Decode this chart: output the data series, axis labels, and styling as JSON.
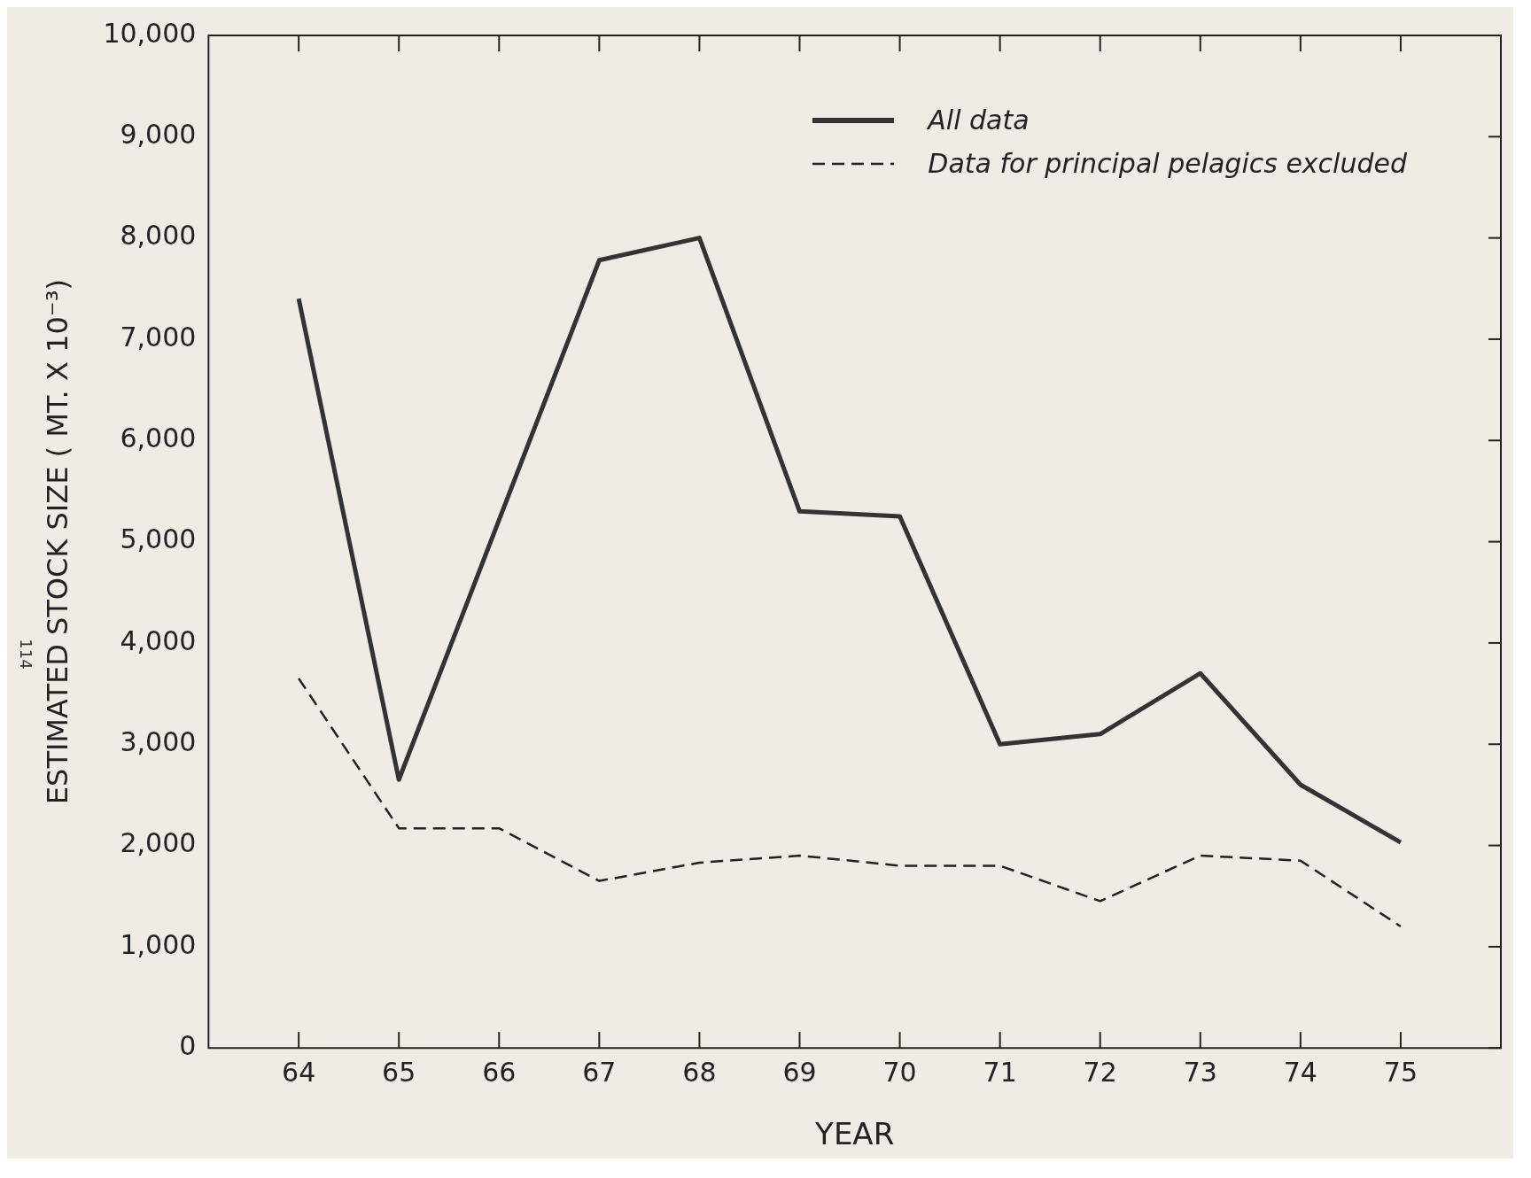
{
  "chart_data": {
    "type": "line",
    "xlabel": "YEAR",
    "ylabel": "ESTIMATED STOCK SIZE ( MT. X 10⁻³)",
    "x": [
      64,
      65,
      66,
      67,
      68,
      69,
      70,
      71,
      72,
      73,
      74,
      75
    ],
    "series": [
      {
        "name": "All data",
        "color": "#333333",
        "line_style": "solid",
        "values": [
          7400,
          2650,
          null,
          7780,
          8000,
          5300,
          5250,
          3000,
          3100,
          3700,
          2600,
          2030
        ]
      },
      {
        "name": "Data for principal pelagics excluded",
        "color": "#222222",
        "line_style": "dashed",
        "values": [
          3650,
          2170,
          2170,
          1650,
          1830,
          1900,
          1800,
          1800,
          1450,
          1900,
          1850,
          1200
        ]
      }
    ],
    "xlim": [
      63.1,
      76
    ],
    "xticks": [
      64,
      65,
      66,
      67,
      68,
      69,
      70,
      71,
      72,
      73,
      74,
      75
    ],
    "ylim": [
      0,
      10000
    ],
    "yticks": [
      0,
      {
        "value": 1000,
        "label": "1,000"
      },
      {
        "value": 2000,
        "label": "2,000"
      },
      {
        "value": 3000,
        "label": "3,000"
      },
      {
        "value": 4000,
        "label": "4,000"
      },
      {
        "value": 5000,
        "label": "5,000"
      },
      {
        "value": 6000,
        "label": "6,000"
      },
      {
        "value": 7000,
        "label": "7,000"
      },
      {
        "value": 8000,
        "label": "8,000"
      },
      {
        "value": 9000,
        "label": "9,000"
      },
      {
        "value": 10000,
        "label": "10,000"
      }
    ],
    "grid": false,
    "legend": "top right",
    "marker": "none",
    "annotations": [
      "114"
    ]
  }
}
